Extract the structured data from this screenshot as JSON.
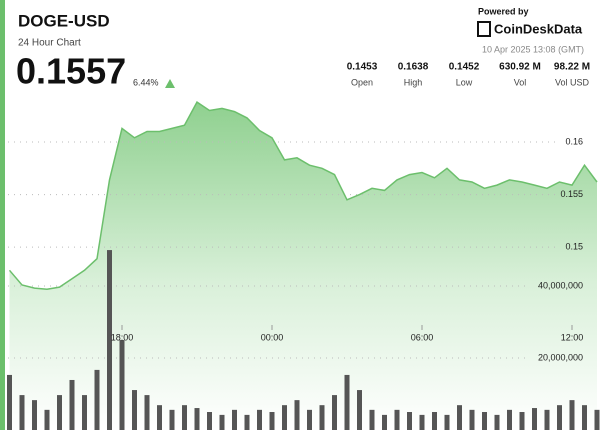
{
  "header": {
    "title": "DOGE-USD",
    "subtitle": "24 Hour Chart",
    "price": "0.1557",
    "change": "6.44%",
    "powered_by": "Powered by",
    "brand": "CoinDeskData",
    "timestamp": "10 Apr 2025 13:08 (GMT)"
  },
  "stats": [
    {
      "value": "0.1453",
      "label": "Open"
    },
    {
      "value": "0.1638",
      "label": "High"
    },
    {
      "value": "0.1452",
      "label": "Low"
    },
    {
      "value": "630.92 M",
      "label": "Vol"
    },
    {
      "value": "98.22 M",
      "label": "Vol USD"
    }
  ],
  "chart_data": {
    "type": "line",
    "categories": [
      null,
      null,
      null,
      null,
      null,
      null,
      null,
      null,
      null,
      "18:00",
      null,
      null,
      null,
      null,
      null,
      null,
      null,
      null,
      null,
      null,
      null,
      "00:00",
      null,
      null,
      null,
      null,
      null,
      null,
      null,
      null,
      null,
      null,
      null,
      "06:00",
      null,
      null,
      null,
      null,
      null,
      null,
      null,
      null,
      null,
      null,
      null,
      "12:00",
      null,
      null
    ],
    "series": [
      {
        "color": "#6cbf6c",
        "values": [
          0.1478,
          0.1464,
          0.1461,
          0.146,
          0.1462,
          0.147,
          0.1478,
          0.1489,
          0.1564,
          0.1613,
          0.1604,
          0.161,
          0.161,
          0.1613,
          0.1616,
          0.1638,
          0.163,
          0.1632,
          0.1629,
          0.1623,
          0.1611,
          0.1604,
          0.1583,
          0.1585,
          0.1578,
          0.1575,
          0.1569,
          0.1545,
          0.155,
          0.1556,
          0.1554,
          0.1564,
          0.1569,
          0.1571,
          0.1566,
          0.1575,
          0.1564,
          0.1562,
          0.1556,
          0.1559,
          0.1564,
          0.1562,
          0.1559,
          0.1556,
          0.1562,
          0.1559,
          0.1578,
          0.1562
        ]
      },
      {
        "type": "bar",
        "axis": "y2",
        "color": "#555555",
        "values": [
          15300000,
          9700000,
          8300000,
          5600000,
          9700000,
          13900000,
          9700000,
          16700000,
          50000000,
          25000000,
          11100000,
          9700000,
          6900000,
          5600000,
          6900000,
          6100000,
          5000000,
          4200000,
          5600000,
          4200000,
          5600000,
          5000000,
          6900000,
          8300000,
          5600000,
          6900000,
          9700000,
          15300000,
          11100000,
          5600000,
          4200000,
          5600000,
          5000000,
          4200000,
          5000000,
          4200000,
          6900000,
          5600000,
          5000000,
          4200000,
          5600000,
          5000000,
          6100000,
          5600000,
          6900000,
          8300000,
          6900000,
          5600000
        ]
      }
    ],
    "ylim": [
      0.1326,
      0.164
    ],
    "yticks": [
      0.16,
      0.155,
      0.15
    ],
    "y2lim": [
      0,
      91700000
    ],
    "y2ticks": [
      {
        "value": 40000000,
        "label": "40,000,000"
      },
      {
        "value": 20000000,
        "label": "20,000,000"
      }
    ],
    "grid": true
  }
}
